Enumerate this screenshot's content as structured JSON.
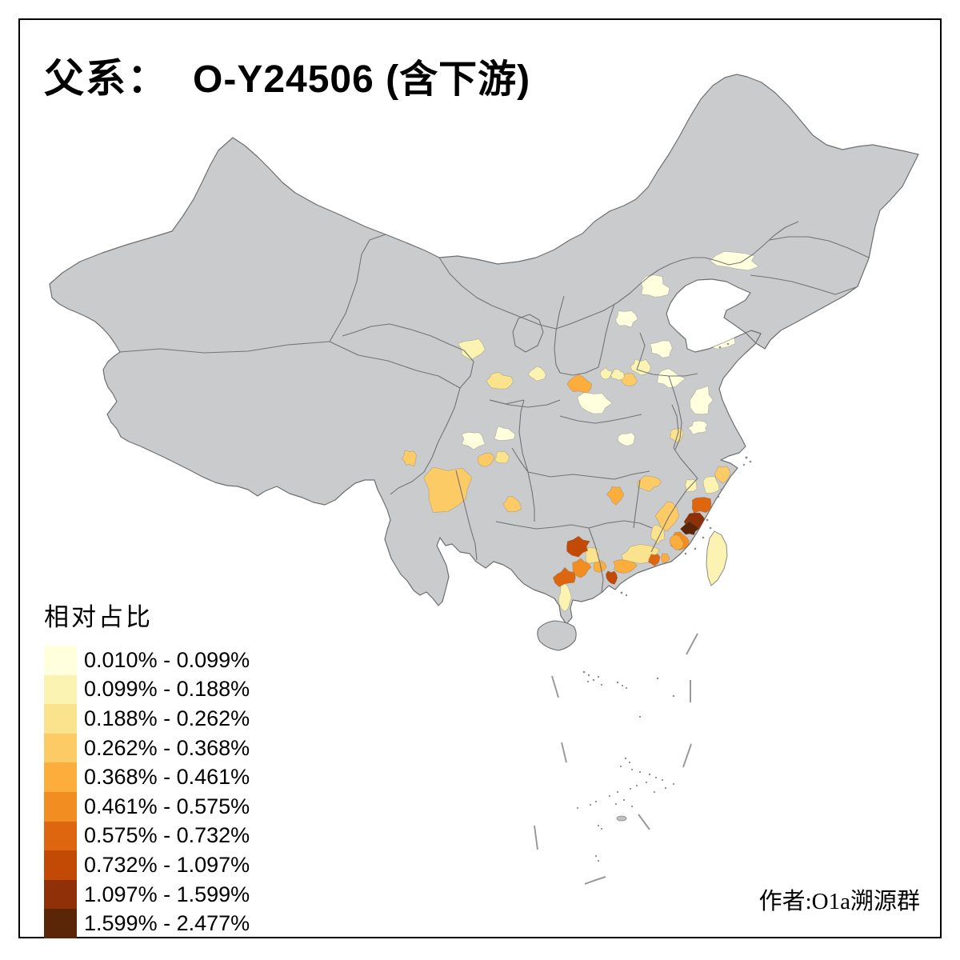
{
  "title": {
    "prefix": "父系：",
    "main": "O-Y24506 (含下游)"
  },
  "legend": {
    "title": "相对占比",
    "items": [
      {
        "label": "0.010% - 0.099%",
        "color": "#FFFFDE"
      },
      {
        "label": "0.099% - 0.188%",
        "color": "#FBF3B1"
      },
      {
        "label": "0.188% - 0.262%",
        "color": "#FBE28C"
      },
      {
        "label": "0.262% - 0.368%",
        "color": "#FCCB66"
      },
      {
        "label": "0.368% - 0.461%",
        "color": "#FCAD3C"
      },
      {
        "label": "0.461% - 0.575%",
        "color": "#F28D22"
      },
      {
        "label": "0.575% - 0.732%",
        "color": "#DD660E"
      },
      {
        "label": "0.732% - 1.097%",
        "color": "#C24A04"
      },
      {
        "label": "1.097% - 1.599%",
        "color": "#8F3009"
      },
      {
        "label": "1.599% - 2.477%",
        "color": "#5B2507"
      }
    ]
  },
  "attribution": "作者:O1a溯源群",
  "map": {
    "land_color": "#CACBCC",
    "sea_color": "#FFFFFF",
    "province_border_color": "#6F6F6F",
    "island_color": "#8A8A8A",
    "taiwan_color": "#FBF3B1",
    "regions": [
      [
        "liaoning-band",
        1,
        920,
        326,
        27,
        12
      ],
      [
        "beijing",
        1,
        818,
        360,
        17,
        14
      ],
      [
        "shijiazhuang",
        1,
        781,
        399,
        14,
        10
      ],
      [
        "yantai-weihai",
        1,
        896,
        424,
        24,
        10
      ],
      [
        "shandong-central",
        1,
        828,
        436,
        15,
        10
      ],
      [
        "sw-shandong",
        2,
        801,
        458,
        12,
        9
      ],
      [
        "xuzhou",
        1,
        836,
        473,
        17,
        11
      ],
      [
        "shangqiu",
        4,
        786,
        475,
        9,
        8
      ],
      [
        "kaifeng",
        2,
        773,
        469,
        8,
        7
      ],
      [
        "sanmenxia-luoyang",
        5,
        724,
        480,
        15,
        11
      ],
      [
        "nanyang",
        1,
        742,
        504,
        20,
        13
      ],
      [
        "xian-weinan",
        3,
        623,
        476,
        17,
        10
      ],
      [
        "tianshui-baoji",
        2,
        589,
        437,
        16,
        13
      ],
      [
        "yuncheng",
        2,
        671,
        468,
        10,
        9
      ],
      [
        "changzhi",
        2,
        757,
        468,
        8,
        7
      ],
      [
        "wuhan",
        1,
        783,
        550,
        11,
        9
      ],
      [
        "hefei",
        3,
        846,
        543,
        10,
        8
      ],
      [
        "jiangsu-coast",
        1,
        877,
        500,
        14,
        17
      ],
      [
        "nanjing-wuxi",
        1,
        873,
        535,
        12,
        8
      ],
      [
        "ningbo-shaoxing",
        4,
        903,
        592,
        10,
        10
      ],
      [
        "wenzhou-taizhou",
        2,
        888,
        606,
        11,
        11
      ],
      [
        "chengdu",
        1,
        592,
        549,
        15,
        11
      ],
      [
        "mianyang",
        1,
        630,
        543,
        13,
        10
      ],
      [
        "zigong-yibin",
        4,
        607,
        574,
        11,
        8
      ],
      [
        "neijiang-luzhou",
        3,
        627,
        571,
        9,
        8
      ],
      [
        "chongqing-zunyi",
        4,
        641,
        630,
        11,
        10
      ],
      [
        "chuxiong-panzhihua",
        4,
        560,
        612,
        32,
        28
      ],
      [
        "lijiang",
        4,
        512,
        573,
        10,
        10
      ],
      [
        "jian-ganzhou",
        5,
        770,
        618,
        10,
        11
      ],
      [
        "shangrao-huangshan",
        4,
        812,
        603,
        14,
        10
      ],
      [
        "ningde-north",
        2,
        863,
        607,
        8,
        8
      ],
      [
        "ningde-fuzhou",
        7,
        875,
        630,
        13,
        11
      ],
      [
        "putian-quanzhou",
        9,
        868,
        652,
        13,
        12
      ],
      [
        "quanzhou-core",
        10,
        862,
        661,
        10,
        8
      ],
      [
        "zhangzhou",
        6,
        850,
        676,
        11,
        10
      ],
      [
        "sanming",
        4,
        834,
        645,
        13,
        19
      ],
      [
        "west-fujian",
        3,
        822,
        668,
        9,
        11
      ],
      [
        "longyan",
        5,
        845,
        679,
        8,
        9
      ],
      [
        "meizhou-shaoguan",
        3,
        800,
        694,
        24,
        12
      ],
      [
        "chaozhou-jieyang",
        7,
        818,
        699,
        8,
        7
      ],
      [
        "shantou",
        5,
        831,
        697,
        6,
        6
      ],
      [
        "qingyuan-heyuan",
        5,
        780,
        707,
        14,
        9
      ],
      [
        "guangzhou-foshan",
        8,
        764,
        722,
        7,
        8
      ],
      [
        "zhaoqing-yunfu",
        5,
        750,
        708,
        7,
        9
      ],
      [
        "leizhou-qinzhou",
        2,
        706,
        747,
        9,
        16
      ],
      [
        "wuzhou",
        3,
        740,
        695,
        9,
        11
      ],
      [
        "liuzhou-laibin",
        8,
        723,
        683,
        14,
        11
      ],
      [
        "guigang-yulin",
        6,
        726,
        709,
        12,
        11
      ],
      [
        "nanning",
        7,
        706,
        722,
        12,
        11
      ]
    ]
  }
}
